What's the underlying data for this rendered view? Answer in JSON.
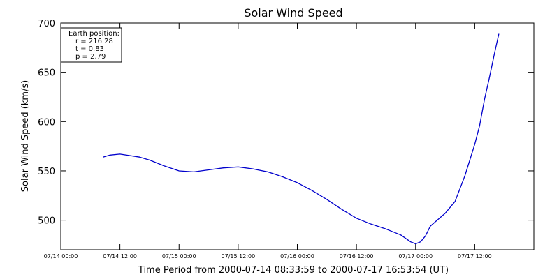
{
  "chart_data": {
    "type": "line",
    "title": "Solar Wind Speed",
    "xlabel": "Time Period from 2000-07-14 08:33:59 to 2000-07-17 16:53:54 (UT)",
    "ylabel": "Solar Wind Speed (km/s)",
    "xlim": [
      "2000-07-14 00:00",
      "2000-07-18 00:00"
    ],
    "ylim": [
      470,
      700
    ],
    "x_ticks": [
      {
        "value": "2000-07-14 00:00",
        "label": "07/14 00:00"
      },
      {
        "value": "2000-07-14 12:00",
        "label": "07/14 12:00"
      },
      {
        "value": "2000-07-15 00:00",
        "label": "07/15 00:00"
      },
      {
        "value": "2000-07-15 12:00",
        "label": "07/15 12:00"
      },
      {
        "value": "2000-07-16 00:00",
        "label": "07/16 00:00"
      },
      {
        "value": "2000-07-16 12:00",
        "label": "07/16 12:00"
      },
      {
        "value": "2000-07-17 00:00",
        "label": "07/17 00:00"
      },
      {
        "value": "2000-07-17 12:00",
        "label": "07/17 12:00"
      }
    ],
    "y_ticks": [
      {
        "value": 500,
        "label": "500"
      },
      {
        "value": 550,
        "label": "550"
      },
      {
        "value": 600,
        "label": "600"
      },
      {
        "value": 650,
        "label": "650"
      },
      {
        "value": 700,
        "label": "700"
      }
    ],
    "series": [
      {
        "color": "#0000cc",
        "points": [
          {
            "x": "2000-07-14 08:34",
            "y": 564
          },
          {
            "x": "2000-07-14 10:00",
            "y": 566
          },
          {
            "x": "2000-07-14 12:00",
            "y": 567
          },
          {
            "x": "2000-07-14 16:00",
            "y": 564
          },
          {
            "x": "2000-07-14 18:00",
            "y": 561
          },
          {
            "x": "2000-07-14 21:00",
            "y": 555
          },
          {
            "x": "2000-07-15 00:00",
            "y": 550
          },
          {
            "x": "2000-07-15 03:00",
            "y": 549
          },
          {
            "x": "2000-07-15 06:00",
            "y": 551
          },
          {
            "x": "2000-07-15 09:00",
            "y": 553
          },
          {
            "x": "2000-07-15 12:00",
            "y": 554
          },
          {
            "x": "2000-07-15 15:00",
            "y": 552
          },
          {
            "x": "2000-07-15 18:00",
            "y": 549
          },
          {
            "x": "2000-07-15 21:00",
            "y": 544
          },
          {
            "x": "2000-07-16 00:00",
            "y": 538
          },
          {
            "x": "2000-07-16 03:00",
            "y": 530
          },
          {
            "x": "2000-07-16 06:00",
            "y": 521
          },
          {
            "x": "2000-07-16 09:00",
            "y": 511
          },
          {
            "x": "2000-07-16 12:00",
            "y": 502
          },
          {
            "x": "2000-07-16 15:00",
            "y": 496
          },
          {
            "x": "2000-07-16 18:00",
            "y": 491
          },
          {
            "x": "2000-07-16 21:00",
            "y": 485
          },
          {
            "x": "2000-07-16 23:00",
            "y": 478
          },
          {
            "x": "2000-07-17 00:00",
            "y": 476
          },
          {
            "x": "2000-07-17 01:00",
            "y": 478
          },
          {
            "x": "2000-07-17 02:00",
            "y": 484
          },
          {
            "x": "2000-07-17 03:00",
            "y": 494
          },
          {
            "x": "2000-07-17 06:00",
            "y": 507
          },
          {
            "x": "2000-07-17 08:00",
            "y": 519
          },
          {
            "x": "2000-07-17 10:00",
            "y": 545
          },
          {
            "x": "2000-07-17 12:00",
            "y": 577
          },
          {
            "x": "2000-07-17 13:00",
            "y": 596
          },
          {
            "x": "2000-07-17 14:00",
            "y": 623
          },
          {
            "x": "2000-07-17 15:00",
            "y": 645
          },
          {
            "x": "2000-07-17 16:00",
            "y": 669
          },
          {
            "x": "2000-07-17 16:54",
            "y": 689
          }
        ]
      }
    ],
    "legend": {
      "heading": "Earth position:",
      "lines": [
        "r = 216.28",
        "t = 0.83",
        "p = 2.79"
      ]
    },
    "grid": false,
    "legend_position": "top-left"
  }
}
